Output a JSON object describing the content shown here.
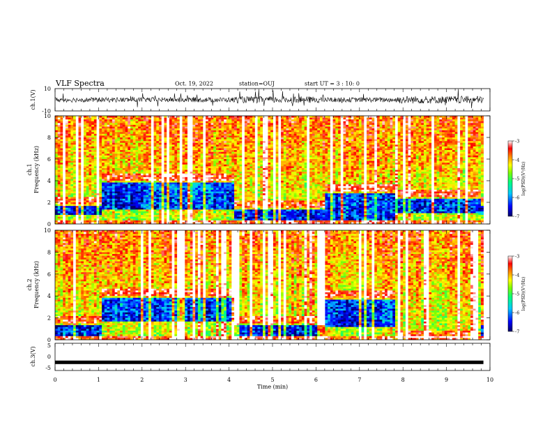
{
  "header": {
    "title": "VLF Spectra",
    "date": "Oct. 19, 2022",
    "station": "station=OUJ",
    "start_ut": "start UT =  3 : 10: 0"
  },
  "chart_data": [
    {
      "type": "line",
      "panel": "ch1-waveform",
      "ylabel": "ch.1(V)",
      "yticks": [
        "10",
        "-10"
      ],
      "ylim": [
        -10,
        10
      ],
      "xlim": [
        0,
        10
      ],
      "color": "#000000"
    },
    {
      "type": "heatmap",
      "panel": "ch1-spectrogram",
      "ylabel": "ch.1\nFrequency (kHz)",
      "ylabel_line1": "ch.1",
      "ylabel_line2": "Frequency (kHz)",
      "yticks": [
        "0",
        "2",
        "4",
        "6",
        "8",
        "10"
      ],
      "ylim": [
        0,
        10
      ],
      "xlim": [
        0,
        10
      ],
      "colorbar": {
        "label": "log(PSD)(V²/Hz)",
        "ticks": [
          "-3",
          "-4",
          "-5",
          "-6",
          "-7"
        ],
        "range": [
          -7,
          -3
        ]
      },
      "segments_min": [
        0,
        1.1,
        4.1,
        6.2,
        7.8,
        9.8
      ],
      "quiet_band_khz": [
        [
          1.6,
          3.6
        ],
        [
          2.8,
          3.8
        ],
        [
          0.4,
          1.2
        ],
        [
          1.0,
          2.8
        ]
      ]
    },
    {
      "type": "heatmap",
      "panel": "ch2-spectrogram",
      "ylabel_line1": "ch.2",
      "ylabel_line2": "Frequency (kHz)",
      "yticks": [
        "0",
        "2",
        "4",
        "6",
        "8",
        "10"
      ],
      "ylim": [
        0,
        10
      ],
      "xlim": [
        0,
        10
      ],
      "colorbar": {
        "label": "log(PSD)(V²/Hz)",
        "ticks": [
          "-3",
          "-4",
          "-5",
          "-6",
          "-7"
        ],
        "range": [
          -7,
          -3
        ]
      },
      "segments_min": [
        0,
        1.1,
        4.1,
        6.2,
        7.8,
        9.8
      ]
    },
    {
      "type": "line",
      "panel": "ch3-waveform",
      "ylabel": "ch.3(V)",
      "yticks": [
        "5",
        "0",
        "-5"
      ],
      "ylim": [
        -5,
        5
      ],
      "xlim": [
        0,
        10
      ],
      "constant_value": -2,
      "color": "#000000"
    }
  ],
  "xaxis": {
    "label": "Time (min)",
    "ticks": [
      "0",
      "1",
      "2",
      "3",
      "4",
      "5",
      "6",
      "7",
      "8",
      "9",
      "10"
    ]
  },
  "colors": {
    "colormap": [
      "#000066",
      "#0000ff",
      "#00c8ff",
      "#00ff7f",
      "#7fff00",
      "#ffff00",
      "#ff7f00",
      "#ff0000",
      "#ffffff"
    ]
  }
}
